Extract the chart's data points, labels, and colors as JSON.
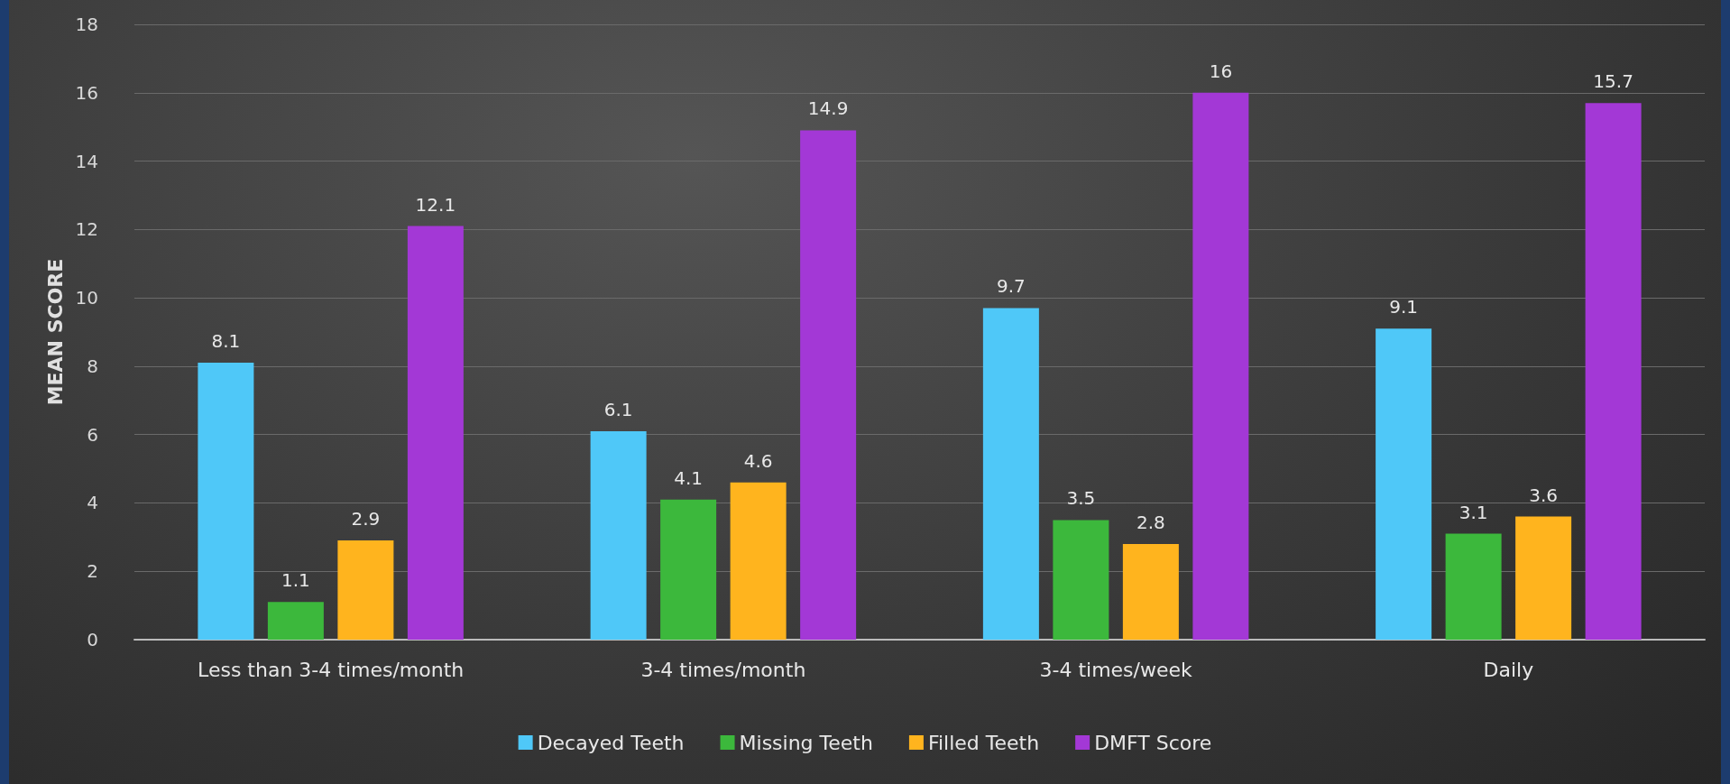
{
  "chart_data": {
    "type": "bar",
    "ylabel": "MEAN SCORE",
    "categories": [
      "Less than 3-4 times/month",
      "3-4 times/month",
      "3-4 times/week",
      "Daily"
    ],
    "series": [
      {
        "name": "Decayed Teeth",
        "color": "#4fc8f8",
        "values": [
          8.1,
          6.1,
          9.7,
          9.1
        ]
      },
      {
        "name": "Missing Teeth",
        "color": "#3cb83c",
        "values": [
          1.1,
          4.1,
          3.5,
          3.1
        ]
      },
      {
        "name": "Filled Teeth",
        "color": "#ffb41e",
        "values": [
          2.9,
          4.6,
          2.8,
          3.6
        ]
      },
      {
        "name": "DMFT Score",
        "color": "#a338d6",
        "values": [
          12.1,
          14.9,
          16,
          15.7
        ]
      }
    ],
    "ylim": [
      0,
      18
    ],
    "yticks": [
      0,
      2,
      4,
      6,
      8,
      10,
      12,
      14,
      16,
      18
    ],
    "grid": "y",
    "legend": "bottom",
    "data_labels": true
  }
}
